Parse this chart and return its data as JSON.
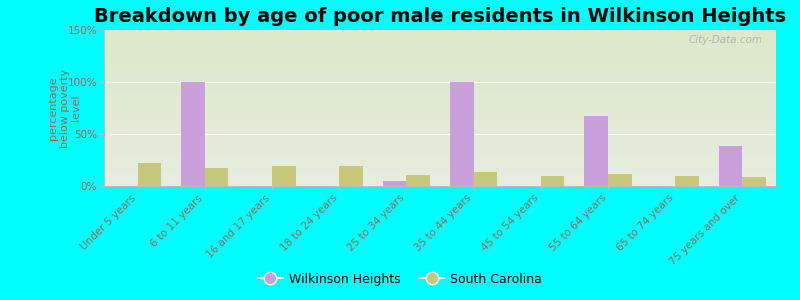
{
  "title": "Breakdown by age of poor male residents in Wilkinson Heights",
  "ylabel": "percentage\nbelow poverty\nlevel",
  "categories": [
    "Under 5 years",
    "6 to 11 years",
    "16 and 17 years",
    "18 to 24 years",
    "25 to 34 years",
    "35 to 44 years",
    "45 to 54 years",
    "55 to 64 years",
    "65 to 74 years",
    "75 years and over"
  ],
  "wilkinson_values": [
    0,
    100,
    0,
    0,
    5,
    100,
    0,
    67,
    0,
    38
  ],
  "sc_values": [
    22,
    17,
    19,
    19,
    11,
    13,
    10,
    12,
    10,
    9
  ],
  "wilkinson_color": "#c9a0dc",
  "sc_color": "#c8c87a",
  "ylim": [
    0,
    150
  ],
  "yticks": [
    0,
    50,
    100,
    150
  ],
  "ytick_labels": [
    "0%",
    "50%",
    "100%",
    "150%"
  ],
  "background_color": "#00ffff",
  "plot_bg_top": "#e8ede0",
  "plot_bg_bottom": "#dce8c8",
  "legend_labels": [
    "Wilkinson Heights",
    "South Carolina"
  ],
  "bar_width": 0.35,
  "title_fontsize": 14,
  "axis_label_fontsize": 8,
  "tick_fontsize": 7.5,
  "tick_color": "#996655",
  "label_color": "#996655",
  "watermark": "City-Data.com"
}
